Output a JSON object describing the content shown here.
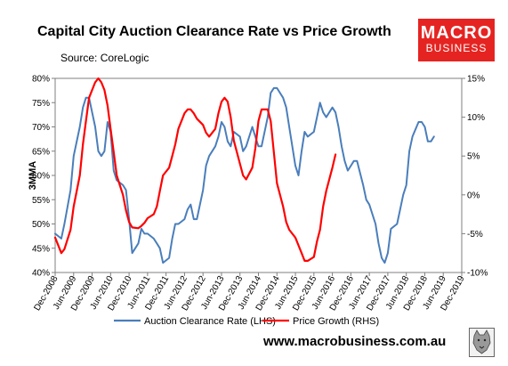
{
  "header": {
    "title": "Capital City Auction Clearance Rate vs Price Growth",
    "source": "Source: CoreLogic"
  },
  "logo": {
    "line1": "MACRO",
    "line2": "BUSINESS"
  },
  "footer": {
    "website": "www.macrobusiness.com.au"
  },
  "colors": {
    "clearance": "#4a7ebb",
    "price": "#ff0000",
    "brand": "#e52421"
  },
  "chart_data": {
    "type": "line",
    "ylabel": "3MMA",
    "left_axis": {
      "min": 40,
      "max": 80,
      "step": 5,
      "ticks": [
        "40%",
        "45%",
        "50%",
        "55%",
        "60%",
        "65%",
        "70%",
        "75%",
        "80%"
      ]
    },
    "right_axis": {
      "min": -10,
      "max": 15,
      "step": 5,
      "ticks": [
        "-10%",
        "-5%",
        "0%",
        "5%",
        "10%",
        "15%"
      ]
    },
    "x_ticks": [
      "Dec-2008",
      "Jun-2009",
      "Dec-2009",
      "Jun-2010",
      "Dec-2010",
      "Jun-2011",
      "Dec-2011",
      "Jun-2012",
      "Dec-2012",
      "Jun-2013",
      "Dec-2013",
      "Jun-2014",
      "Dec-2014",
      "Jun-2015",
      "Dec-2015",
      "Jun-2016",
      "Dec-2016",
      "Jun-2017",
      "Dec-2017",
      "Jun-2018",
      "Dec-2018",
      "Jun-2019",
      "Dec-2019"
    ],
    "x_range": [
      "Dec-2008",
      "Dec-2019"
    ],
    "legend_position": "bottom",
    "grid": false,
    "series": [
      {
        "name": "Auction Clearance Rate (LHS)",
        "axis": "left",
        "color": "#4a7ebb",
        "points": [
          [
            "Dec-2008",
            48
          ],
          [
            "Feb-2009",
            47
          ],
          [
            "Mar-2009",
            50
          ],
          [
            "May-2009",
            57
          ],
          [
            "Jun-2009",
            64
          ],
          [
            "Aug-2009",
            70
          ],
          [
            "Sep-2009",
            74
          ],
          [
            "Oct-2009",
            76
          ],
          [
            "Nov-2009",
            76
          ],
          [
            "Jan-2010",
            70
          ],
          [
            "Feb-2010",
            65
          ],
          [
            "Mar-2010",
            64
          ],
          [
            "Apr-2010",
            65
          ],
          [
            "May-2010",
            71
          ],
          [
            "Jun-2010",
            69
          ],
          [
            "Jul-2010",
            61
          ],
          [
            "Aug-2010",
            59
          ],
          [
            "Oct-2010",
            58
          ],
          [
            "Nov-2010",
            57
          ],
          [
            "Dec-2010",
            51
          ],
          [
            "Jan-2011",
            44
          ],
          [
            "Mar-2011",
            46
          ],
          [
            "Apr-2011",
            49
          ],
          [
            "May-2011",
            48
          ],
          [
            "Jun-2011",
            48
          ],
          [
            "Aug-2011",
            47
          ],
          [
            "Sep-2011",
            46
          ],
          [
            "Oct-2011",
            45
          ],
          [
            "Nov-2011",
            42
          ],
          [
            "Jan-2012",
            43
          ],
          [
            "Feb-2012",
            47
          ],
          [
            "Mar-2012",
            50
          ],
          [
            "Apr-2012",
            50
          ],
          [
            "Jun-2012",
            51
          ],
          [
            "Jul-2012",
            53
          ],
          [
            "Aug-2012",
            54
          ],
          [
            "Sep-2012",
            51
          ],
          [
            "Oct-2012",
            51
          ],
          [
            "Dec-2012",
            57
          ],
          [
            "Jan-2013",
            62
          ],
          [
            "Feb-2013",
            64
          ],
          [
            "Apr-2013",
            66
          ],
          [
            "May-2013",
            68
          ],
          [
            "Jun-2013",
            71
          ],
          [
            "Jul-2013",
            70
          ],
          [
            "Aug-2013",
            67
          ],
          [
            "Sep-2013",
            66
          ],
          [
            "Oct-2013",
            69
          ],
          [
            "Dec-2013",
            68
          ],
          [
            "Jan-2014",
            65
          ],
          [
            "Feb-2014",
            66
          ],
          [
            "Apr-2014",
            70
          ],
          [
            "May-2014",
            68
          ],
          [
            "Jun-2014",
            66
          ],
          [
            "Jul-2014",
            66
          ],
          [
            "Sep-2014",
            72
          ],
          [
            "Oct-2014",
            77
          ],
          [
            "Nov-2014",
            78
          ],
          [
            "Dec-2014",
            78
          ],
          [
            "Feb-2015",
            76
          ],
          [
            "Mar-2015",
            74
          ],
          [
            "Apr-2015",
            70
          ],
          [
            "Jun-2015",
            62
          ],
          [
            "Jul-2015",
            60
          ],
          [
            "Aug-2015",
            65
          ],
          [
            "Sep-2015",
            69
          ],
          [
            "Oct-2015",
            68
          ],
          [
            "Dec-2015",
            69
          ],
          [
            "Jan-2016",
            72
          ],
          [
            "Feb-2016",
            75
          ],
          [
            "Mar-2016",
            73
          ],
          [
            "Apr-2016",
            72
          ],
          [
            "Jun-2016",
            74
          ],
          [
            "Jul-2016",
            73
          ],
          [
            "Aug-2016",
            70
          ],
          [
            "Sep-2016",
            66
          ],
          [
            "Oct-2016",
            63
          ],
          [
            "Nov-2016",
            61
          ],
          [
            "Dec-2016",
            62
          ],
          [
            "Jan-2017",
            63
          ],
          [
            "Feb-2017",
            63
          ],
          [
            "Apr-2017",
            58
          ],
          [
            "May-2017",
            55
          ],
          [
            "Jun-2017",
            54
          ],
          [
            "Aug-2017",
            50
          ],
          [
            "Sep-2017",
            46
          ],
          [
            "Oct-2017",
            43
          ],
          [
            "Nov-2017",
            42
          ],
          [
            "Dec-2017",
            44
          ],
          [
            "Jan-2018",
            49
          ],
          [
            "Mar-2018",
            50
          ],
          [
            "Apr-2018",
            53
          ],
          [
            "May-2018",
            56
          ],
          [
            "Jun-2018",
            58
          ],
          [
            "Jul-2018",
            65
          ],
          [
            "Aug-2018",
            68
          ],
          [
            "Oct-2018",
            71
          ],
          [
            "Nov-2018",
            71
          ],
          [
            "Dec-2018",
            70
          ],
          [
            "Jan-2019",
            67
          ],
          [
            "Feb-2019",
            67
          ],
          [
            "Mar-2019",
            68
          ]
        ]
      },
      {
        "name": "Price Growth (RHS)",
        "axis": "right",
        "color": "#ff0000",
        "points": [
          [
            "Dec-2008",
            -5.5
          ],
          [
            "Feb-2009",
            -7.5
          ],
          [
            "Mar-2009",
            -7.0
          ],
          [
            "May-2009",
            -4.5
          ],
          [
            "Jun-2009",
            -1.5
          ],
          [
            "Aug-2009",
            2.5
          ],
          [
            "Sep-2009",
            6.5
          ],
          [
            "Oct-2009",
            9.5
          ],
          [
            "Nov-2009",
            12.5
          ],
          [
            "Jan-2010",
            14.5
          ],
          [
            "Feb-2010",
            15.0
          ],
          [
            "Mar-2010",
            14.5
          ],
          [
            "Apr-2010",
            13.5
          ],
          [
            "May-2010",
            11.5
          ],
          [
            "Jun-2010",
            8.5
          ],
          [
            "Jul-2010",
            5.5
          ],
          [
            "Aug-2010",
            2.5
          ],
          [
            "Oct-2010",
            0.0
          ],
          [
            "Nov-2010",
            -2.0
          ],
          [
            "Dec-2010",
            -3.5
          ],
          [
            "Jan-2011",
            -4.2
          ],
          [
            "Mar-2011",
            -4.3
          ],
          [
            "Apr-2011",
            -4.0
          ],
          [
            "May-2011",
            -3.6
          ],
          [
            "Jun-2011",
            -3.0
          ],
          [
            "Aug-2011",
            -2.5
          ],
          [
            "Sep-2011",
            -1.5
          ],
          [
            "Oct-2011",
            0.5
          ],
          [
            "Nov-2011",
            2.5
          ],
          [
            "Jan-2012",
            3.5
          ],
          [
            "Feb-2012",
            5.0
          ],
          [
            "Mar-2012",
            6.5
          ],
          [
            "Apr-2012",
            8.5
          ],
          [
            "Jun-2012",
            10.5
          ],
          [
            "Jul-2012",
            11.0
          ],
          [
            "Aug-2012",
            11.0
          ],
          [
            "Sep-2012",
            10.5
          ],
          [
            "Oct-2012",
            9.8
          ],
          [
            "Dec-2012",
            9.0
          ],
          [
            "Jan-2013",
            8.0
          ],
          [
            "Feb-2013",
            7.5
          ],
          [
            "Apr-2013",
            8.5
          ],
          [
            "May-2013",
            10.5
          ],
          [
            "Jun-2013",
            12.0
          ],
          [
            "Jul-2013",
            12.5
          ],
          [
            "Aug-2013",
            12.0
          ],
          [
            "Sep-2013",
            10.0
          ],
          [
            "Oct-2013",
            7.0
          ],
          [
            "Dec-2013",
            4.0
          ],
          [
            "Jan-2014",
            2.5
          ],
          [
            "Feb-2014",
            2.0
          ],
          [
            "Apr-2014",
            3.5
          ],
          [
            "May-2014",
            6.0
          ],
          [
            "Jun-2014",
            9.5
          ],
          [
            "Jul-2014",
            11.0
          ],
          [
            "Sep-2014",
            11.0
          ],
          [
            "Oct-2014",
            9.5
          ],
          [
            "Nov-2014",
            5.5
          ],
          [
            "Dec-2014",
            1.5
          ],
          [
            "Feb-2015",
            -1.5
          ],
          [
            "Mar-2015",
            -3.5
          ],
          [
            "Apr-2015",
            -4.5
          ],
          [
            "Jun-2015",
            -5.5
          ],
          [
            "Jul-2015",
            -6.5
          ],
          [
            "Aug-2015",
            -7.5
          ],
          [
            "Sep-2015",
            -8.5
          ],
          [
            "Oct-2015",
            -8.5
          ],
          [
            "Dec-2015",
            -8.0
          ],
          [
            "Jan-2016",
            -6.0
          ],
          [
            "Feb-2016",
            -4.5
          ],
          [
            "Mar-2016",
            -1.5
          ],
          [
            "Apr-2016",
            0.5
          ],
          [
            "Jun-2016",
            3.5
          ],
          [
            "Jul-2016",
            5.2
          ]
        ]
      }
    ]
  }
}
